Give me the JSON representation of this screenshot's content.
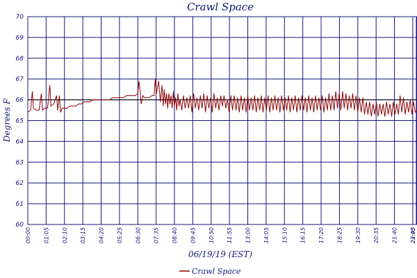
{
  "chart_data": {
    "type": "line",
    "title": "Crawl Space",
    "xlabel": "06/19/19 (EST)",
    "ylabel": "Degrees F",
    "ylim": [
      60,
      70
    ],
    "yticks": [
      "60",
      "61",
      "62",
      "63",
      "64",
      "65",
      "66",
      "67",
      "68",
      "69",
      "70"
    ],
    "xticks": [
      "00:00",
      "01:05",
      "02:10",
      "03:15",
      "04:20",
      "05:25",
      "06:30",
      "07:35",
      "08:40",
      "09:45",
      "10:50",
      "11:55",
      "13:00",
      "14:05",
      "15:10",
      "16:15",
      "17:20",
      "18:25",
      "19:30",
      "20:35",
      "21:40",
      "22:45",
      "23:00"
    ],
    "grid": true,
    "legend_position": "bottom-center",
    "colors": {
      "series": "#8b0000",
      "grid": "#15157a",
      "text": "#15157a",
      "highlight_line": "#000000"
    },
    "series": [
      {
        "name": "Crawl Space",
        "points": [
          [
            "00:00",
            65.4
          ],
          [
            "00:10",
            65.5
          ],
          [
            "00:16",
            66.4
          ],
          [
            "00:20",
            65.6
          ],
          [
            "00:30",
            65.5
          ],
          [
            "00:40",
            65.5
          ],
          [
            "00:48",
            66.3
          ],
          [
            "00:52",
            65.5
          ],
          [
            "01:00",
            65.6
          ],
          [
            "01:10",
            65.6
          ],
          [
            "01:18",
            66.7
          ],
          [
            "01:22",
            65.7
          ],
          [
            "01:32",
            65.8
          ],
          [
            "01:42",
            66.2
          ],
          [
            "01:46",
            65.5
          ],
          [
            "01:52",
            66.2
          ],
          [
            "01:56",
            65.4
          ],
          [
            "02:02",
            65.6
          ],
          [
            "02:10",
            65.6
          ],
          [
            "02:20",
            65.6
          ],
          [
            "02:30",
            65.7
          ],
          [
            "02:40",
            65.7
          ],
          [
            "02:50",
            65.7
          ],
          [
            "03:00",
            65.8
          ],
          [
            "03:10",
            65.8
          ],
          [
            "03:20",
            65.9
          ],
          [
            "03:30",
            65.9
          ],
          [
            "03:40",
            65.9
          ],
          [
            "03:50",
            66.0
          ],
          [
            "04:00",
            66.0
          ],
          [
            "04:10",
            66.0
          ],
          [
            "04:20",
            66.0
          ],
          [
            "04:30",
            66.0
          ],
          [
            "04:40",
            66.0
          ],
          [
            "04:50",
            66.0
          ],
          [
            "05:00",
            66.1
          ],
          [
            "05:10",
            66.1
          ],
          [
            "05:20",
            66.1
          ],
          [
            "05:30",
            66.1
          ],
          [
            "05:40",
            66.1
          ],
          [
            "05:50",
            66.2
          ],
          [
            "06:00",
            66.2
          ],
          [
            "06:10",
            66.2
          ],
          [
            "06:20",
            66.2
          ],
          [
            "06:30",
            66.3
          ],
          [
            "06:34",
            66.9
          ],
          [
            "06:38",
            66.5
          ],
          [
            "06:42",
            65.8
          ],
          [
            "06:48",
            66.2
          ],
          [
            "06:54",
            66.1
          ],
          [
            "07:00",
            66.1
          ],
          [
            "07:10",
            66.1
          ],
          [
            "07:20",
            66.2
          ],
          [
            "07:28",
            66.2
          ],
          [
            "07:32",
            67.0
          ],
          [
            "07:36",
            66.3
          ],
          [
            "07:44",
            66.9
          ],
          [
            "07:50",
            65.9
          ],
          [
            "07:56",
            66.7
          ],
          [
            "08:00",
            65.7
          ],
          [
            "08:04",
            66.5
          ],
          [
            "08:08",
            65.8
          ],
          [
            "08:12",
            66.3
          ],
          [
            "08:16",
            65.6
          ],
          [
            "08:20",
            66.3
          ],
          [
            "08:24",
            65.8
          ],
          [
            "08:28",
            66.2
          ],
          [
            "08:32",
            65.6
          ],
          [
            "08:36",
            66.4
          ],
          [
            "08:40",
            65.7
          ],
          [
            "08:44",
            66.1
          ],
          [
            "08:48",
            65.5
          ],
          [
            "08:52",
            66.3
          ],
          [
            "08:56",
            65.7
          ],
          [
            "09:00",
            66.0
          ],
          [
            "09:06",
            65.5
          ],
          [
            "09:12",
            66.2
          ],
          [
            "09:18",
            65.6
          ],
          [
            "09:24",
            66.1
          ],
          [
            "09:30",
            65.6
          ],
          [
            "09:36",
            66.2
          ],
          [
            "09:42",
            65.4
          ],
          [
            "09:48",
            66.3
          ],
          [
            "09:54",
            65.6
          ],
          [
            "10:00",
            66.1
          ],
          [
            "10:06",
            65.5
          ],
          [
            "10:12",
            66.2
          ],
          [
            "10:18",
            65.6
          ],
          [
            "10:24",
            66.3
          ],
          [
            "10:30",
            65.4
          ],
          [
            "10:36",
            66.2
          ],
          [
            "10:42",
            65.6
          ],
          [
            "10:48",
            66.1
          ],
          [
            "10:54",
            65.4
          ],
          [
            "11:00",
            66.3
          ],
          [
            "11:06",
            65.6
          ],
          [
            "11:12",
            66.1
          ],
          [
            "11:18",
            65.5
          ],
          [
            "11:24",
            66.2
          ],
          [
            "11:30",
            65.7
          ],
          [
            "11:36",
            66.2
          ],
          [
            "11:42",
            65.6
          ],
          [
            "11:48",
            66.0
          ],
          [
            "11:54",
            65.4
          ],
          [
            "12:00",
            66.2
          ],
          [
            "12:06",
            65.5
          ],
          [
            "12:12",
            66.2
          ],
          [
            "12:18",
            65.5
          ],
          [
            "12:24",
            66.1
          ],
          [
            "12:30",
            65.4
          ],
          [
            "12:36",
            66.2
          ],
          [
            "12:42",
            65.5
          ],
          [
            "12:48",
            66.1
          ],
          [
            "12:54",
            65.4
          ],
          [
            "13:00",
            66.2
          ],
          [
            "13:06",
            65.5
          ],
          [
            "13:12",
            66.1
          ],
          [
            "13:18",
            65.5
          ],
          [
            "13:24",
            66.2
          ],
          [
            "13:30",
            65.4
          ],
          [
            "13:36",
            66.1
          ],
          [
            "13:42",
            65.5
          ],
          [
            "13:48",
            66.2
          ],
          [
            "13:54",
            65.4
          ],
          [
            "14:00",
            66.1
          ],
          [
            "14:06",
            65.5
          ],
          [
            "14:12",
            66.2
          ],
          [
            "14:18",
            65.4
          ],
          [
            "14:24",
            66.1
          ],
          [
            "14:30",
            65.5
          ],
          [
            "14:36",
            66.2
          ],
          [
            "14:42",
            65.5
          ],
          [
            "14:48",
            66.1
          ],
          [
            "14:54",
            65.4
          ],
          [
            "15:00",
            66.2
          ],
          [
            "15:06",
            65.5
          ],
          [
            "15:12",
            66.1
          ],
          [
            "15:18",
            65.5
          ],
          [
            "15:24",
            66.2
          ],
          [
            "15:30",
            65.4
          ],
          [
            "15:36",
            66.1
          ],
          [
            "15:42",
            65.5
          ],
          [
            "15:48",
            66.2
          ],
          [
            "15:54",
            65.4
          ],
          [
            "16:00",
            66.1
          ],
          [
            "16:06",
            65.5
          ],
          [
            "16:12",
            66.2
          ],
          [
            "16:18",
            65.5
          ],
          [
            "16:24",
            66.1
          ],
          [
            "16:30",
            65.4
          ],
          [
            "16:36",
            66.2
          ],
          [
            "16:42",
            65.5
          ],
          [
            "16:48",
            66.1
          ],
          [
            "16:54",
            65.4
          ],
          [
            "17:00",
            66.2
          ],
          [
            "17:06",
            65.5
          ],
          [
            "17:12",
            66.1
          ],
          [
            "17:18",
            65.5
          ],
          [
            "17:24",
            66.2
          ],
          [
            "17:30",
            65.4
          ],
          [
            "17:36",
            66.1
          ],
          [
            "17:42",
            65.5
          ],
          [
            "17:48",
            66.3
          ],
          [
            "17:54",
            65.5
          ],
          [
            "18:00",
            66.2
          ],
          [
            "18:06",
            65.5
          ],
          [
            "18:12",
            66.4
          ],
          [
            "18:18",
            65.6
          ],
          [
            "18:24",
            66.3
          ],
          [
            "18:30",
            65.5
          ],
          [
            "18:36",
            66.4
          ],
          [
            "18:42",
            65.6
          ],
          [
            "18:48",
            66.3
          ],
          [
            "18:54",
            65.5
          ],
          [
            "19:00",
            66.2
          ],
          [
            "19:06",
            65.6
          ],
          [
            "19:12",
            66.3
          ],
          [
            "19:18",
            65.5
          ],
          [
            "19:24",
            66.2
          ],
          [
            "19:30",
            65.4
          ],
          [
            "19:36",
            66.1
          ],
          [
            "19:42",
            65.4
          ],
          [
            "19:48",
            66.1
          ],
          [
            "19:54",
            65.3
          ],
          [
            "20:00",
            65.9
          ],
          [
            "20:06",
            65.3
          ],
          [
            "20:12",
            65.9
          ],
          [
            "20:18",
            65.2
          ],
          [
            "20:24",
            65.8
          ],
          [
            "20:30",
            65.3
          ],
          [
            "20:36",
            65.9
          ],
          [
            "20:42",
            65.2
          ],
          [
            "20:48",
            65.8
          ],
          [
            "20:54",
            65.3
          ],
          [
            "21:00",
            65.8
          ],
          [
            "21:06",
            65.2
          ],
          [
            "21:12",
            65.9
          ],
          [
            "21:18",
            65.3
          ],
          [
            "21:24",
            65.8
          ],
          [
            "21:30",
            65.2
          ],
          [
            "21:36",
            65.9
          ],
          [
            "21:42",
            65.3
          ],
          [
            "21:48",
            65.8
          ],
          [
            "21:54",
            65.3
          ],
          [
            "22:00",
            66.2
          ],
          [
            "22:06",
            65.4
          ],
          [
            "22:12",
            66.1
          ],
          [
            "22:18",
            65.3
          ],
          [
            "22:24",
            65.9
          ],
          [
            "22:30",
            65.4
          ],
          [
            "22:36",
            66.0
          ],
          [
            "22:42",
            65.3
          ],
          [
            "22:48",
            65.9
          ],
          [
            "22:54",
            65.4
          ],
          [
            "23:00",
            65.5
          ]
        ]
      }
    ]
  }
}
